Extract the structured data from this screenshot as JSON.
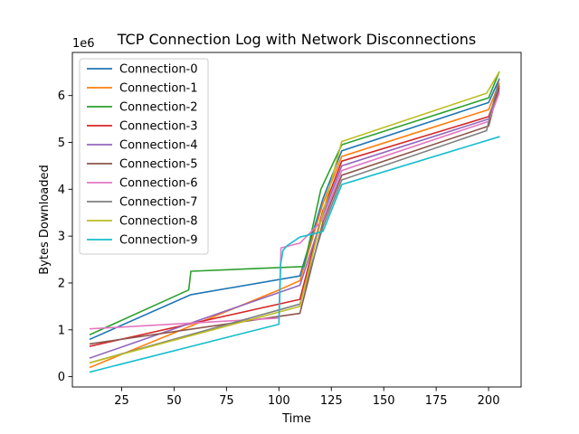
{
  "chart_data": {
    "type": "line",
    "title": "TCP Connection Log with Network Disconnections",
    "xlabel": "Time",
    "ylabel": "Bytes Downloaded",
    "y_offset_text": "1e6",
    "xlim": [
      1.5,
      215.5
    ],
    "ylim": [
      -0.22,
      6.92
    ],
    "y_scale_label": "millions of bytes (1e6)",
    "xticks": [
      25,
      50,
      75,
      100,
      125,
      150,
      175,
      200
    ],
    "yticks": [
      0,
      1,
      2,
      3,
      4,
      5,
      6
    ],
    "grid": false,
    "legend_position": "upper-left",
    "series": [
      {
        "name": "Connection-0",
        "color": "#1f77b4",
        "x": [
          10,
          58,
          110,
          121,
          130,
          200,
          205
        ],
        "y": [
          0.8,
          1.75,
          2.15,
          3.8,
          4.82,
          5.85,
          6.35
        ]
      },
      {
        "name": "Connection-1",
        "color": "#ff7f0e",
        "x": [
          10,
          100,
          110,
          121,
          130,
          200,
          205
        ],
        "y": [
          0.2,
          1.85,
          2.05,
          3.7,
          4.7,
          5.7,
          6.25
        ]
      },
      {
        "name": "Connection-2",
        "color": "#2ca02c",
        "x": [
          10,
          57,
          58,
          112,
          120,
          130,
          200,
          205
        ],
        "y": [
          0.9,
          1.85,
          2.25,
          2.35,
          4.0,
          4.95,
          5.95,
          6.5
        ]
      },
      {
        "name": "Connection-3",
        "color": "#d62728",
        "x": [
          10,
          110,
          121,
          130,
          200,
          205
        ],
        "y": [
          0.65,
          1.65,
          3.55,
          4.6,
          5.55,
          6.15
        ]
      },
      {
        "name": "Connection-4",
        "color": "#9467bd",
        "x": [
          10,
          110,
          121,
          130,
          200,
          205
        ],
        "y": [
          0.4,
          1.95,
          3.45,
          4.5,
          5.5,
          6.1
        ]
      },
      {
        "name": "Connection-5",
        "color": "#8c564b",
        "x": [
          10,
          110,
          121,
          130,
          200,
          205
        ],
        "y": [
          0.7,
          1.35,
          3.3,
          4.3,
          5.35,
          6.2
        ]
      },
      {
        "name": "Connection-6",
        "color": "#e377c2",
        "x": [
          10,
          100,
          101,
          110,
          121,
          130,
          200,
          205
        ],
        "y": [
          1.02,
          1.25,
          2.75,
          2.85,
          3.35,
          4.4,
          5.45,
          6.05
        ]
      },
      {
        "name": "Connection-7",
        "color": "#7f7f7f",
        "x": [
          10,
          110,
          121,
          130,
          199,
          205
        ],
        "y": [
          0.3,
          1.55,
          3.2,
          4.2,
          5.25,
          6.35
        ]
      },
      {
        "name": "Connection-8",
        "color": "#bcbd22",
        "x": [
          10,
          110,
          121,
          130,
          199,
          205
        ],
        "y": [
          0.3,
          1.5,
          3.5,
          5.02,
          6.05,
          6.5
        ]
      },
      {
        "name": "Connection-9",
        "color": "#17becf",
        "x": [
          10,
          100,
          100.3,
          100.8,
          102,
          104,
          110,
          121,
          130,
          205
        ],
        "y": [
          0.1,
          1.12,
          1.55,
          2.4,
          2.7,
          2.8,
          2.98,
          3.1,
          4.1,
          5.12
        ]
      }
    ]
  }
}
